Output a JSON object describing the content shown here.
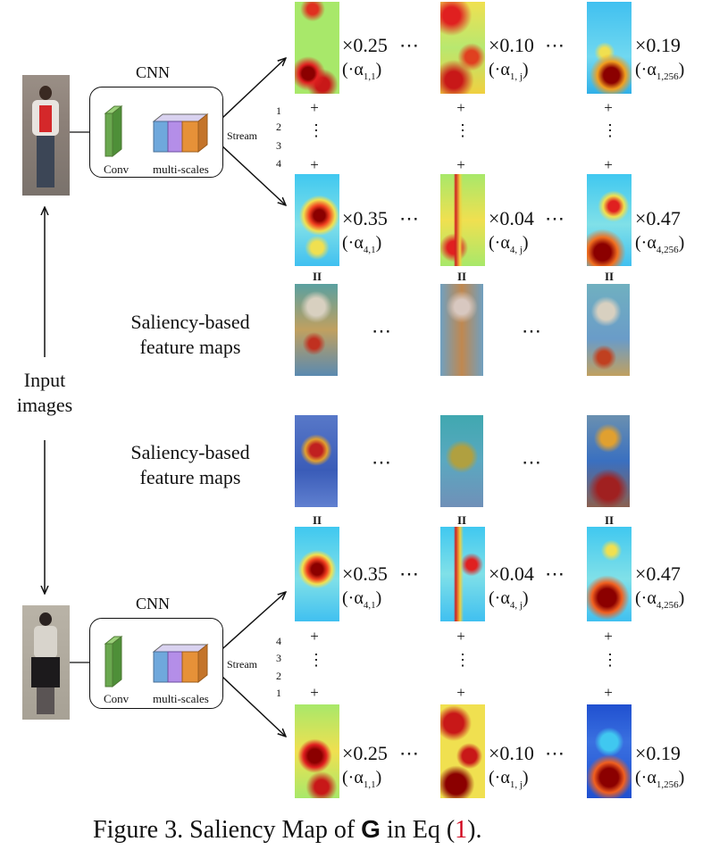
{
  "caption": {
    "prefix": "Figure 3. Saliency Map of ",
    "symbol": "G",
    "middle": " in Eq (",
    "ref": "1",
    "suffix": ")."
  },
  "cnn_label": "CNN",
  "conv_label": "Conv",
  "multiscale_label": "multi-scales",
  "stream_label": "Stream",
  "stream_numbers_top": [
    "1",
    "2",
    "3",
    "4"
  ],
  "stream_numbers_bottom": [
    "4",
    "3",
    "2",
    "1"
  ],
  "input_label": [
    "Input",
    "images"
  ],
  "feature_maps_label": [
    "Saliency-based",
    "feature maps"
  ],
  "top_rows": [
    {
      "factors": [
        "×0.25",
        "×0.10",
        "×0.19"
      ],
      "alphas": [
        [
          "1,1"
        ],
        [
          "1, j"
        ],
        [
          "1,256"
        ]
      ]
    },
    {
      "factors": [
        "×0.35",
        "×0.04",
        "×0.47"
      ],
      "alphas": [
        [
          "4,1"
        ],
        [
          "4, j"
        ],
        [
          "4,256"
        ]
      ]
    }
  ],
  "bottom_rows": [
    {
      "factors": [
        "×0.35",
        "×0.04",
        "×0.47"
      ],
      "alphas": [
        [
          "4,1"
        ],
        [
          "4, j"
        ],
        [
          "4,256"
        ]
      ]
    },
    {
      "factors": [
        "×0.25",
        "×0.10",
        "×0.19"
      ],
      "alphas": [
        [
          "1,1"
        ],
        [
          "1, j"
        ],
        [
          "1,256"
        ]
      ]
    }
  ],
  "alpha_symbol": "α",
  "ellipsis": "⋯",
  "plus": "+",
  "vertical_ellipsis": "⋮",
  "equals": "II",
  "colors": {
    "caption_ref": "#d0021b",
    "conv": "#6aa84f",
    "scale_blue": "#6fa8dc",
    "scale_purple": "#b48ee8",
    "scale_orange": "#e69138"
  }
}
